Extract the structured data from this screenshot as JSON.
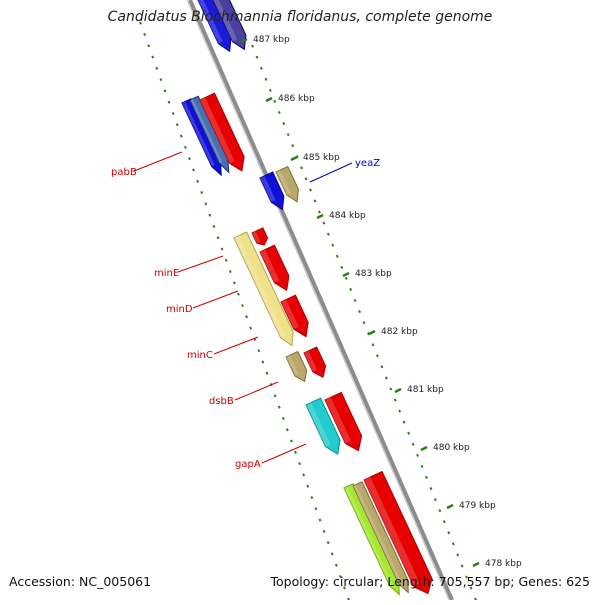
{
  "title": "Candidatus Blochmannia floridanus, complete genome",
  "footer": {
    "accession": "Accession: NC_005061",
    "summary": "Topology: circular; Length: 705,557 bp; Genes: 625"
  },
  "colors": {
    "backbone": "#8c8c8c",
    "tick": "#2e7d1a",
    "gene_label": "#cc0000",
    "gene_label_blue": "#0000cc"
  },
  "kbp_ticks": [
    "487 kbp",
    "486 kbp",
    "485 kbp",
    "484 kbp",
    "483 kbp",
    "482 kbp",
    "481 kbp",
    "480 kbp",
    "479 kbp",
    "478 kbp"
  ],
  "gene_labels_left": [
    "pabB",
    "minE",
    "minD",
    "minC",
    "dsbB",
    "gapA"
  ],
  "gene_labels_right": [
    "yeaZ"
  ]
}
